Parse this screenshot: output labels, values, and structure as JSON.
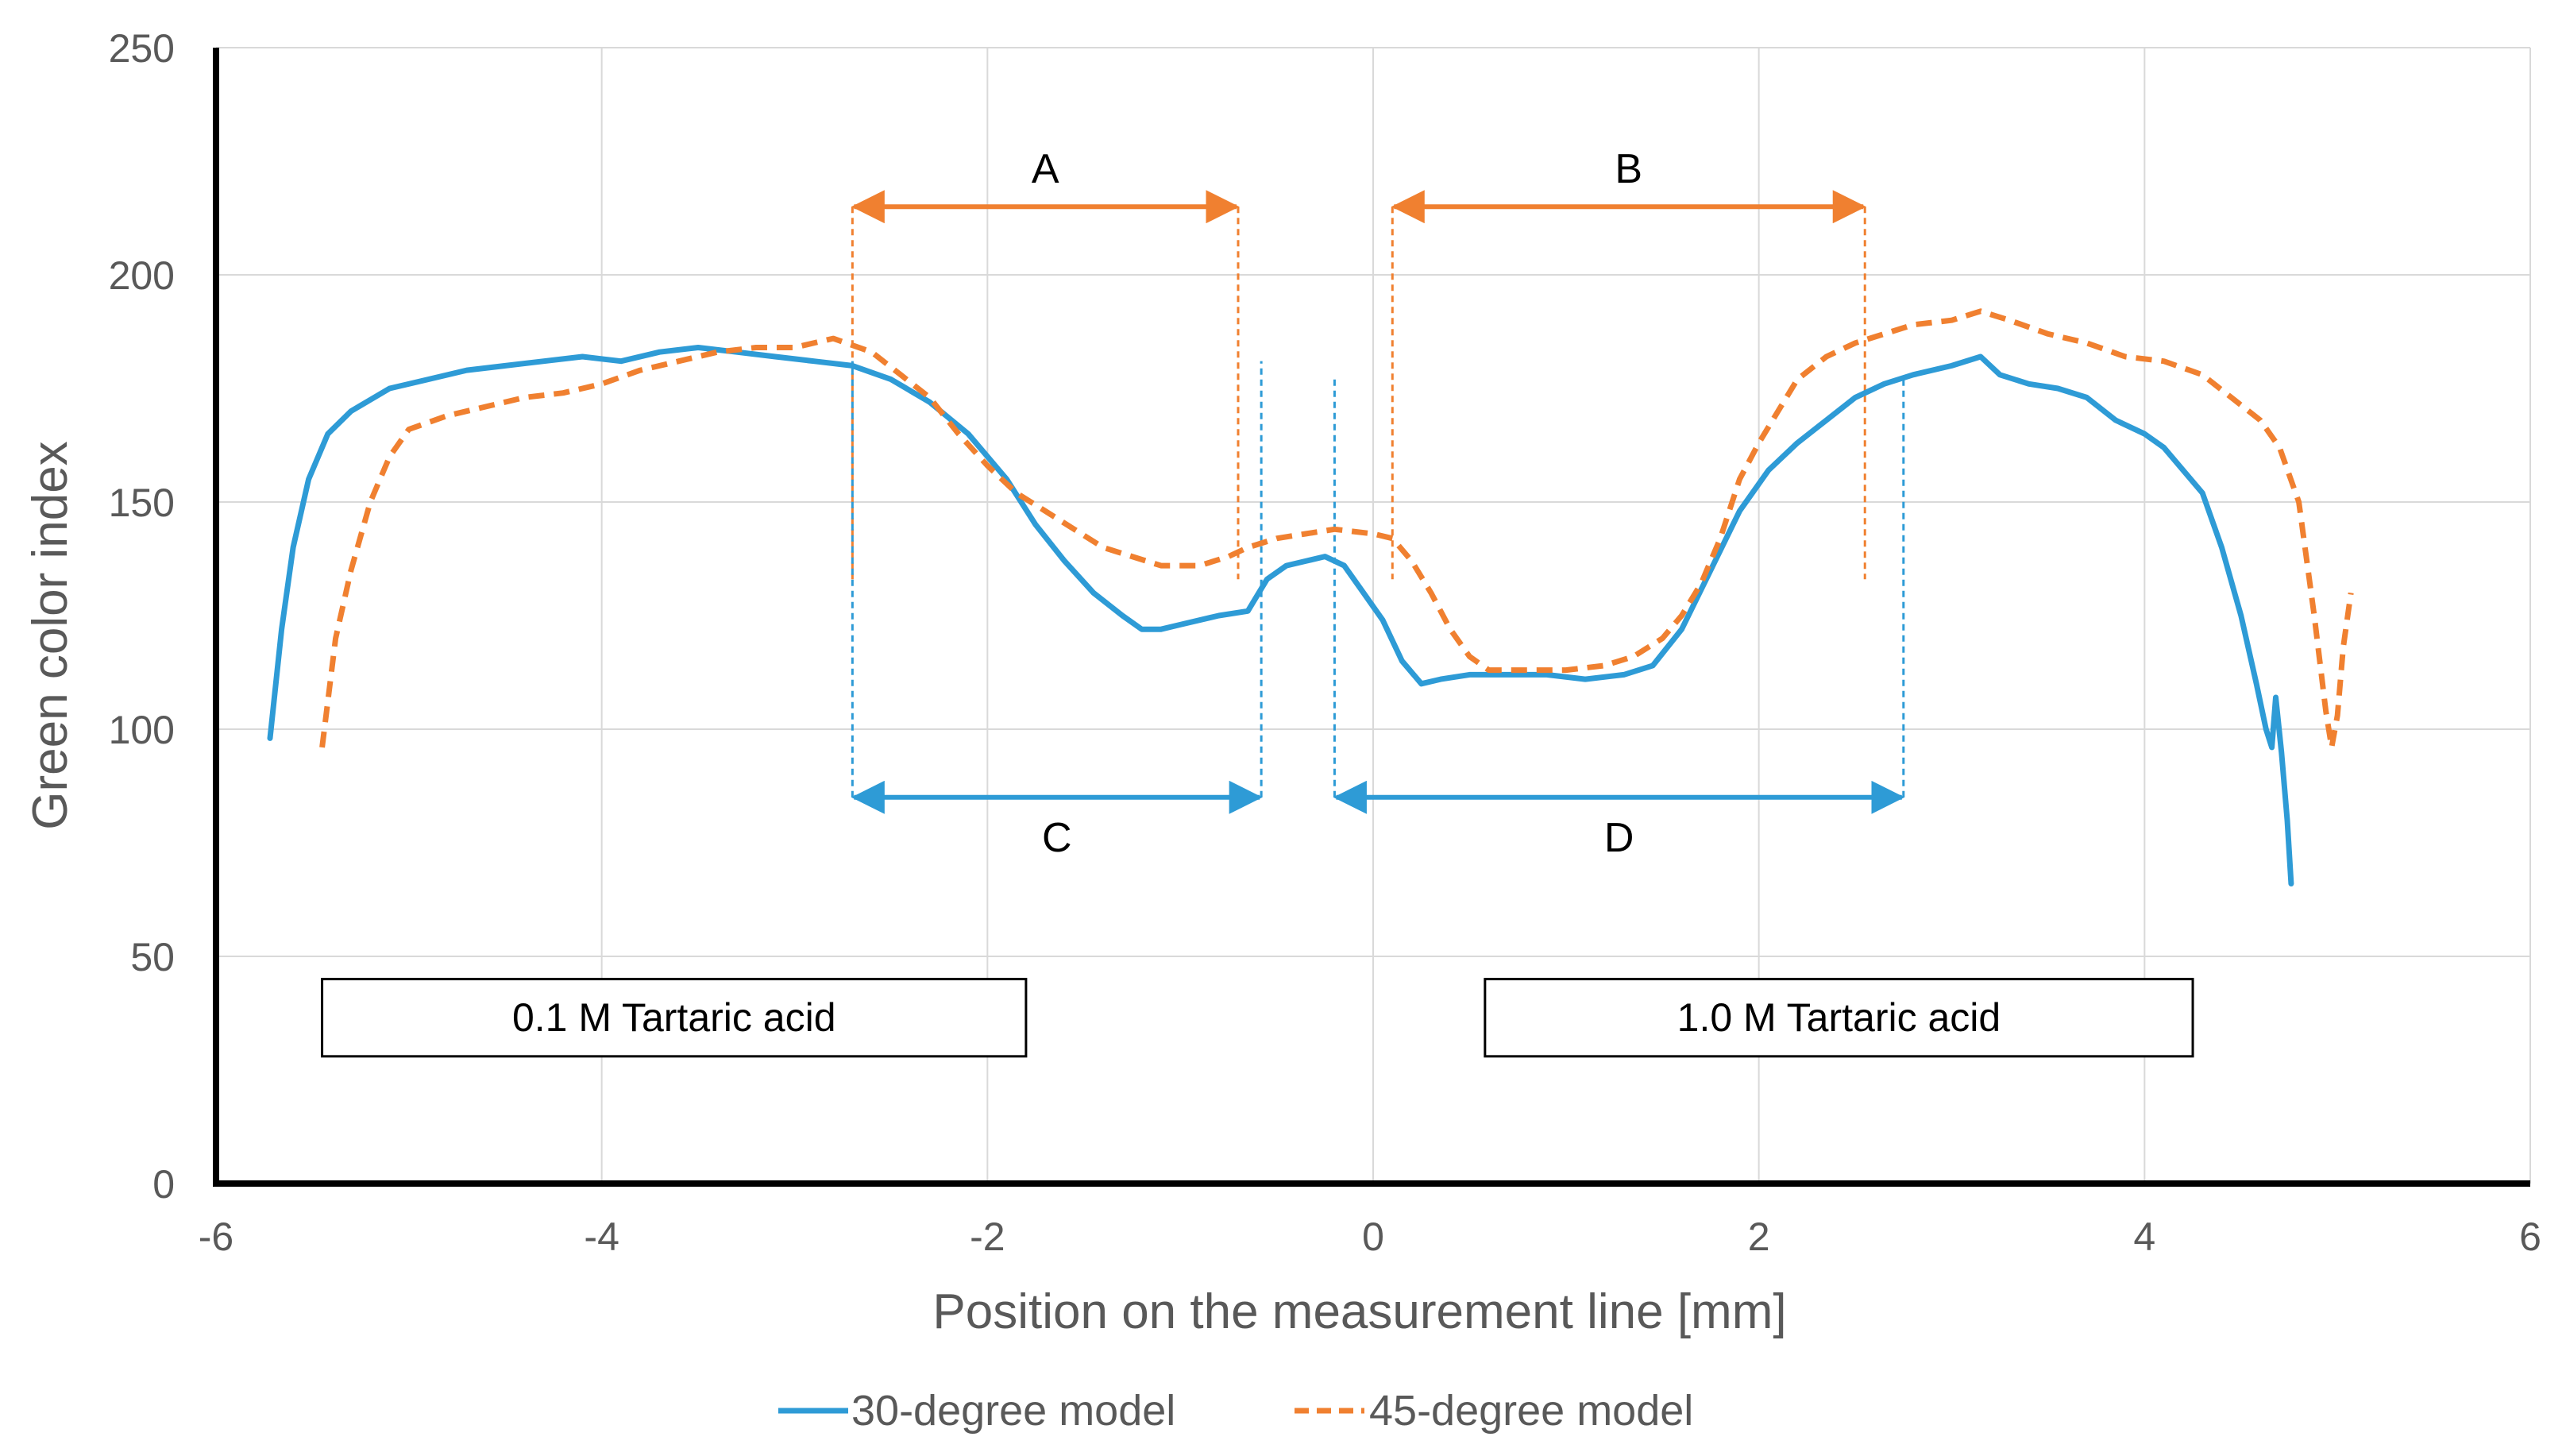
{
  "chart_data": {
    "type": "line",
    "title": "",
    "xlabel": "Position on the measurement line [mm]",
    "ylabel": "Green color index",
    "xlim": [
      -6,
      6
    ],
    "ylim": [
      0,
      250
    ],
    "xticks": [
      -6,
      -4,
      -2,
      0,
      2,
      4,
      6
    ],
    "yticks": [
      0,
      50,
      100,
      150,
      200,
      250
    ],
    "grid": true,
    "legend_position": "bottom",
    "colors": {
      "s30": "#2e9bd6",
      "s45": "#f08030"
    },
    "series": [
      {
        "name": "30-degree model",
        "style": "solid",
        "color": "#2e9bd6",
        "points": [
          [
            -5.72,
            98
          ],
          [
            -5.66,
            122
          ],
          [
            -5.6,
            140
          ],
          [
            -5.52,
            155
          ],
          [
            -5.42,
            165
          ],
          [
            -5.3,
            170
          ],
          [
            -5.1,
            175
          ],
          [
            -4.9,
            177
          ],
          [
            -4.7,
            179
          ],
          [
            -4.5,
            180
          ],
          [
            -4.3,
            181
          ],
          [
            -4.1,
            182
          ],
          [
            -3.9,
            181
          ],
          [
            -3.7,
            183
          ],
          [
            -3.5,
            184
          ],
          [
            -3.3,
            183
          ],
          [
            -3.1,
            182
          ],
          [
            -2.9,
            181
          ],
          [
            -2.7,
            180
          ],
          [
            -2.5,
            177
          ],
          [
            -2.3,
            172
          ],
          [
            -2.1,
            165
          ],
          [
            -1.9,
            155
          ],
          [
            -1.75,
            145
          ],
          [
            -1.6,
            137
          ],
          [
            -1.45,
            130
          ],
          [
            -1.3,
            125
          ],
          [
            -1.2,
            122
          ],
          [
            -1.1,
            122
          ],
          [
            -1.0,
            123
          ],
          [
            -0.8,
            125
          ],
          [
            -0.65,
            126
          ],
          [
            -0.55,
            133
          ],
          [
            -0.45,
            136
          ],
          [
            -0.35,
            137
          ],
          [
            -0.25,
            138
          ],
          [
            -0.15,
            136
          ],
          [
            -0.05,
            130
          ],
          [
            0.05,
            124
          ],
          [
            0.15,
            115
          ],
          [
            0.25,
            110
          ],
          [
            0.35,
            111
          ],
          [
            0.5,
            112
          ],
          [
            0.7,
            112
          ],
          [
            0.9,
            112
          ],
          [
            1.1,
            111
          ],
          [
            1.3,
            112
          ],
          [
            1.45,
            114
          ],
          [
            1.6,
            122
          ],
          [
            1.75,
            135
          ],
          [
            1.9,
            148
          ],
          [
            2.05,
            157
          ],
          [
            2.2,
            163
          ],
          [
            2.35,
            168
          ],
          [
            2.5,
            173
          ],
          [
            2.65,
            176
          ],
          [
            2.8,
            178
          ],
          [
            3.0,
            180
          ],
          [
            3.15,
            182
          ],
          [
            3.25,
            178
          ],
          [
            3.4,
            176
          ],
          [
            3.55,
            175
          ],
          [
            3.7,
            173
          ],
          [
            3.85,
            168
          ],
          [
            4.0,
            165
          ],
          [
            4.1,
            162
          ],
          [
            4.2,
            157
          ],
          [
            4.3,
            152
          ],
          [
            4.4,
            140
          ],
          [
            4.5,
            125
          ],
          [
            4.58,
            110
          ],
          [
            4.63,
            100
          ],
          [
            4.66,
            96
          ],
          [
            4.68,
            107
          ],
          [
            4.71,
            95
          ],
          [
            4.74,
            80
          ],
          [
            4.76,
            66
          ]
        ]
      },
      {
        "name": "45-degree model",
        "style": "dashed",
        "color": "#f08030",
        "points": [
          [
            -5.45,
            96
          ],
          [
            -5.38,
            120
          ],
          [
            -5.3,
            135
          ],
          [
            -5.2,
            150
          ],
          [
            -5.1,
            160
          ],
          [
            -5.0,
            166
          ],
          [
            -4.8,
            169
          ],
          [
            -4.6,
            171
          ],
          [
            -4.4,
            173
          ],
          [
            -4.2,
            174
          ],
          [
            -4.0,
            176
          ],
          [
            -3.8,
            179
          ],
          [
            -3.6,
            181
          ],
          [
            -3.4,
            183
          ],
          [
            -3.2,
            184
          ],
          [
            -3.0,
            184
          ],
          [
            -2.8,
            186
          ],
          [
            -2.6,
            183
          ],
          [
            -2.45,
            178
          ],
          [
            -2.3,
            173
          ],
          [
            -2.15,
            165
          ],
          [
            -2.0,
            158
          ],
          [
            -1.85,
            152
          ],
          [
            -1.7,
            148
          ],
          [
            -1.55,
            144
          ],
          [
            -1.4,
            140
          ],
          [
            -1.25,
            138
          ],
          [
            -1.1,
            136
          ],
          [
            -0.9,
            136
          ],
          [
            -0.75,
            138
          ],
          [
            -0.65,
            140
          ],
          [
            -0.5,
            142
          ],
          [
            -0.35,
            143
          ],
          [
            -0.2,
            144
          ],
          [
            0.0,
            143
          ],
          [
            0.1,
            142
          ],
          [
            0.2,
            137
          ],
          [
            0.3,
            130
          ],
          [
            0.4,
            122
          ],
          [
            0.5,
            116
          ],
          [
            0.6,
            113
          ],
          [
            0.8,
            113
          ],
          [
            1.0,
            113
          ],
          [
            1.2,
            114
          ],
          [
            1.35,
            116
          ],
          [
            1.5,
            120
          ],
          [
            1.6,
            125
          ],
          [
            1.7,
            132
          ],
          [
            1.8,
            142
          ],
          [
            1.9,
            155
          ],
          [
            2.0,
            163
          ],
          [
            2.1,
            170
          ],
          [
            2.2,
            177
          ],
          [
            2.35,
            182
          ],
          [
            2.5,
            185
          ],
          [
            2.65,
            187
          ],
          [
            2.8,
            189
          ],
          [
            3.0,
            190
          ],
          [
            3.15,
            192
          ],
          [
            3.3,
            190
          ],
          [
            3.5,
            187
          ],
          [
            3.7,
            185
          ],
          [
            3.9,
            182
          ],
          [
            4.1,
            181
          ],
          [
            4.3,
            178
          ],
          [
            4.45,
            173
          ],
          [
            4.6,
            168
          ],
          [
            4.7,
            162
          ],
          [
            4.8,
            150
          ],
          [
            4.88,
            125
          ],
          [
            4.94,
            104
          ],
          [
            4.97,
            96
          ],
          [
            5.0,
            103
          ],
          [
            5.03,
            118
          ],
          [
            5.07,
            130
          ]
        ]
      }
    ],
    "annotations": {
      "A": {
        "label": "A",
        "x1": -2.7,
        "x2": -0.7,
        "y": 215,
        "drop_to": 133,
        "color": "#f08030"
      },
      "B": {
        "label": "B",
        "x1": 0.1,
        "x2": 2.55,
        "y": 215,
        "drop_to": 133,
        "color": "#f08030"
      },
      "C": {
        "label": "C",
        "x1": -2.7,
        "x2": -0.58,
        "y": 85,
        "rise_to": 181,
        "color": "#2e9bd6"
      },
      "D": {
        "label": "D",
        "x1": -0.2,
        "x2": 2.75,
        "y": 85,
        "rise_to": 177,
        "color": "#2e9bd6"
      }
    },
    "boxes": [
      {
        "text": "0.1 M Tartaric acid",
        "x1": -5.45,
        "x2": -1.8,
        "y_top": 45,
        "y_bottom": 28
      },
      {
        "text": "1.0 M Tartaric acid",
        "x1": 0.58,
        "x2": 4.25,
        "y_top": 45,
        "y_bottom": 28
      }
    ]
  }
}
